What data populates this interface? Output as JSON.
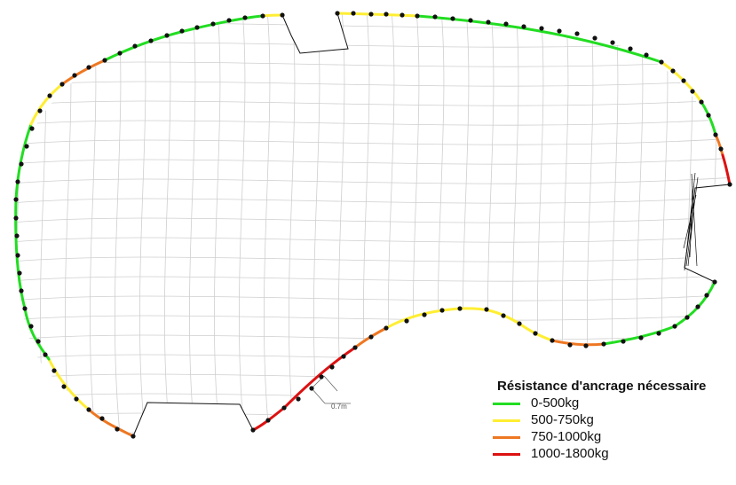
{
  "legend": {
    "title": "Résistance d'ancrage nécessaire",
    "items": [
      {
        "label": "0-500kg",
        "color": "#22dd22"
      },
      {
        "label": "500-750kg",
        "color": "#ffee33"
      },
      {
        "label": "750-1000kg",
        "color": "#ee7722"
      },
      {
        "label": "1000-1800kg",
        "color": "#dd1111"
      }
    ]
  },
  "dimension": {
    "label": "0.7m"
  }
}
